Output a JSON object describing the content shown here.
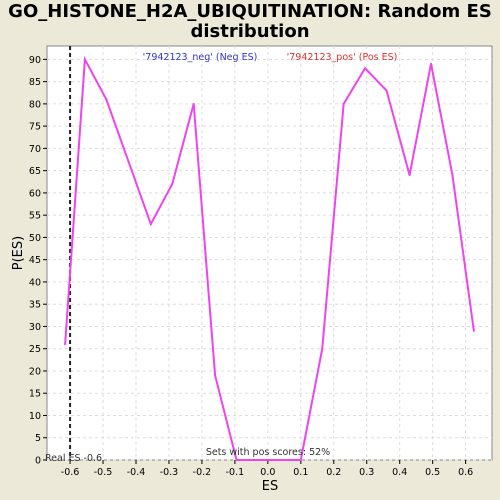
{
  "chart_data": {
    "type": "line",
    "title_line1": "GO_HISTONE_H2A_UBIQUITINATION: Random ES",
    "title_line2": "distribution",
    "xlabel": "ES",
    "ylabel": "P(ES)",
    "xlim": [
      -0.67,
      0.68
    ],
    "ylim": [
      0,
      93
    ],
    "x_ticks": [
      -0.6,
      -0.5,
      -0.4,
      -0.3,
      -0.2,
      -0.1,
      0.0,
      0.1,
      0.2,
      0.3,
      0.4,
      0.5,
      0.6
    ],
    "y_ticks": [
      0,
      5,
      10,
      15,
      20,
      25,
      30,
      35,
      40,
      45,
      50,
      55,
      60,
      65,
      70,
      75,
      80,
      85,
      90
    ],
    "grid": true,
    "legend": [
      {
        "label": "'7942123_neg' (Neg ES)",
        "color": "#3333cc"
      },
      {
        "label": "'7942123_pos' (Pos ES)",
        "color": "#dd3333"
      }
    ],
    "series": [
      {
        "name": "'7942123_pos' (Pos ES)",
        "color": "#ee44ee",
        "x": [
          -0.615,
          -0.555,
          -0.49,
          -0.355,
          -0.29,
          -0.225,
          -0.16,
          -0.095,
          -0.03,
          0.035,
          0.1,
          0.165,
          0.23,
          0.295,
          0.36,
          0.43,
          0.495,
          0.56,
          0.625
        ],
        "y": [
          26,
          90,
          81,
          53,
          62,
          80,
          19,
          0,
          0,
          0,
          0,
          25,
          80,
          88,
          83,
          64,
          89,
          64,
          29
        ]
      }
    ],
    "real_es": -0.6,
    "real_es_label": "Real ES -0.6",
    "annotation": "Sets with pos scores: 52%"
  }
}
